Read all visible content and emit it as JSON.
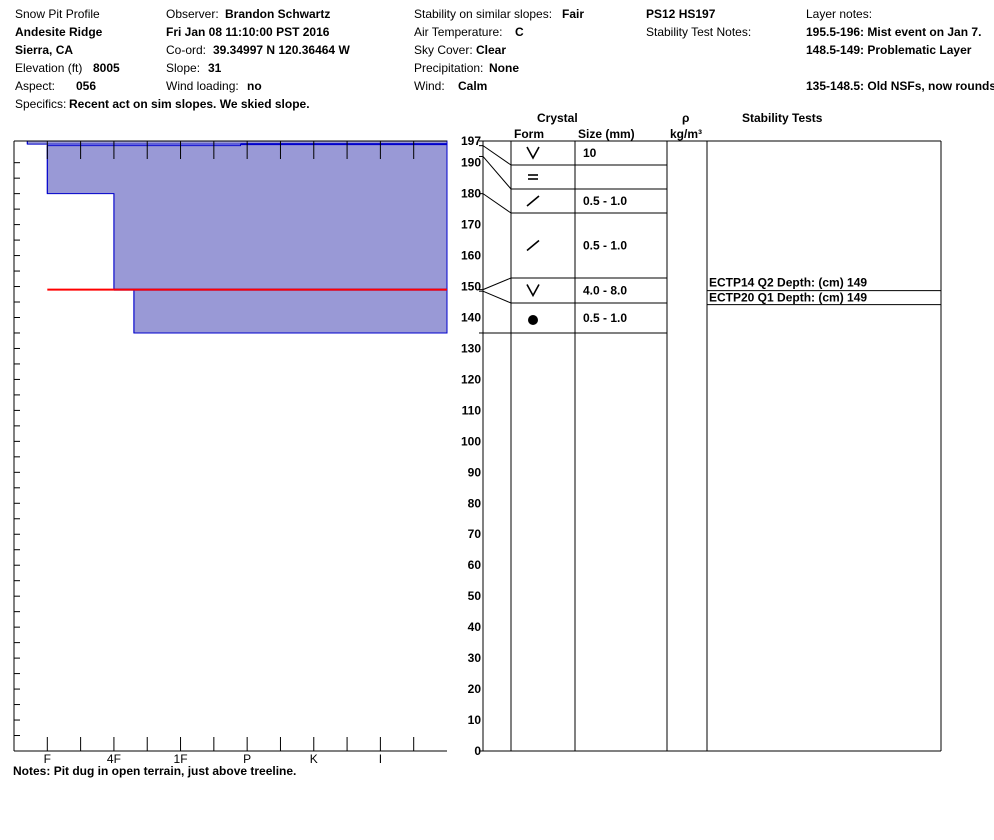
{
  "header": {
    "title": "Snow Pit Profile",
    "location": "Andesite Ridge",
    "region": "Sierra, CA",
    "elevation_label": "Elevation (ft)",
    "elevation": "8005",
    "aspect_label": "Aspect:",
    "aspect": "056",
    "specifics_label": "Specifics:",
    "specifics": "Recent act on sim slopes. We skied slope.",
    "observer_label": "Observer:",
    "observer": "Brandon Schwartz",
    "datetime": "Fri Jan 08 11:10:00 PST 2016",
    "coord_label": "Co-ord:",
    "coord": "39.34997 N 120.36464 W",
    "slope_label": "Slope:",
    "slope": "31",
    "wind_loading_label": "Wind loading:",
    "wind_loading": "no",
    "stability_label": "Stability on similar slopes:",
    "stability": "Fair",
    "air_temp_label": "Air Temperature:",
    "air_temp": "C",
    "sky_label": "Sky Cover:",
    "sky": "Clear",
    "precip_label": "Precipitation:",
    "precip": "None",
    "wind_label": "Wind:",
    "wind": "Calm",
    "pit_id": "PS12 HS197",
    "stability_notes_label": "Stability Test Notes:",
    "layer_notes_label": "Layer notes:",
    "layer_notes": [
      "195.5-196: Mist event on Jan 7.",
      "148.5-149: Problematic Layer",
      "",
      "135-148.5: Old NSFs, now rounds"
    ]
  },
  "notes": {
    "label": "Notes:",
    "text": "Pit dug in open terrain, just above treeline."
  },
  "chart_data": {
    "type": "snow_pit_profile",
    "depth_axis": {
      "min": 0,
      "max": 197,
      "ticks": [
        0,
        10,
        20,
        30,
        40,
        50,
        60,
        70,
        80,
        90,
        100,
        110,
        120,
        130,
        140,
        150,
        160,
        170,
        180,
        190,
        197
      ]
    },
    "hardness_axis": {
      "tick_labels": [
        "I",
        "K",
        "P",
        "1F",
        "4F",
        "F"
      ],
      "scale_positions": [
        2,
        4,
        6,
        8,
        10,
        12
      ],
      "max": 13
    },
    "hardness_profile": [
      {
        "top": 197,
        "bottom": 196,
        "hardness": 12.6
      },
      {
        "top": 196,
        "bottom": 195.5,
        "hardness": 6.2
      },
      {
        "top": 195.5,
        "bottom": 180,
        "hardness": 12
      },
      {
        "top": 180,
        "bottom": 149,
        "hardness": 10
      },
      {
        "top": 149,
        "bottom": 135,
        "hardness": 9.4
      }
    ],
    "marked_layers": [
      {
        "depth": 196,
        "color": "#0000cc"
      },
      {
        "depth": 149,
        "color": "#0000cc",
        "highlight_from_hardness": 12,
        "highlight_color": "#ff0000"
      }
    ],
    "column_headers": {
      "crystal": "Crystal",
      "form": "Form",
      "size": "Size (mm)",
      "density_symbol": "ρ",
      "density_unit": "kg/m³",
      "stability": "Stability Tests"
    },
    "layers": [
      {
        "top": 197,
        "bottom": 195.5,
        "form": "v",
        "size": "10"
      },
      {
        "top": 195.5,
        "bottom": 192,
        "form": "=",
        "size": ""
      },
      {
        "top": 192,
        "bottom": 180,
        "form": "/",
        "size": "0.5 - 1.0"
      },
      {
        "top": 180,
        "bottom": 149,
        "form": "/",
        "size": "0.5 - 1.0"
      },
      {
        "top": 149,
        "bottom": 148.5,
        "form": "v",
        "size": "4.0 - 8.0"
      },
      {
        "top": 148.5,
        "bottom": 135,
        "form": "dot",
        "size": "0.5 - 1.0"
      }
    ],
    "stability_tests": [
      {
        "text": "ECTP14 Q2 Depth: (cm) 149",
        "depth": 149
      },
      {
        "text": "ECTP20 Q1 Depth: (cm) 149",
        "depth": 149
      }
    ]
  }
}
